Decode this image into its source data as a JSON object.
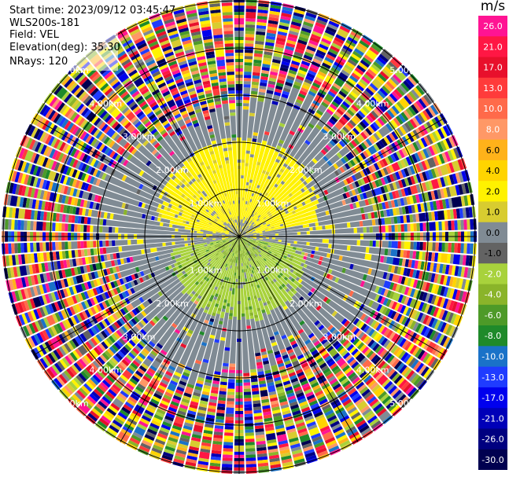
{
  "info": {
    "start_time": "Start time: 2023/09/12 03:45:47",
    "site": "WLS200s-181",
    "field": "Field: VEL",
    "elevation": "Elevation(deg): 35.30",
    "nrays": "NRays: 120"
  },
  "colorbar": {
    "unit": "m/s",
    "ticks": [
      "26.0",
      "21.0",
      "17.0",
      "13.0",
      "10.0",
      "8.0",
      "6.0",
      "4.0",
      "2.0",
      "1.0",
      "0.0",
      "-1.0",
      "-2.0",
      "-4.0",
      "-6.0",
      "-8.0",
      "-10.0",
      "-13.0",
      "-17.0",
      "-21.0",
      "-26.0",
      "-30.0"
    ],
    "colors": [
      "#ff1493",
      "#ff1744",
      "#e8102c",
      "#ff3b3b",
      "#ff6a4a",
      "#ff9866",
      "#ffb21a",
      "#ffd400",
      "#fff200",
      "#d8cc30",
      "#808b94",
      "#636363",
      "#a8d23c",
      "#8ab42a",
      "#4d9a28",
      "#1f8a2a",
      "#1a72c8",
      "#1f3cff",
      "#0000ee",
      "#0000b8",
      "#000080",
      "#000050"
    ]
  },
  "chart_data": {
    "type": "polar-ppi",
    "field": "VEL",
    "nrays": 120,
    "range_ring_labels": [
      "1.00km",
      "2.00km",
      "3.00km",
      "4.00km",
      "5.00km"
    ],
    "velocity_levels": [
      26.0,
      21.0,
      17.0,
      13.0,
      10.0,
      8.0,
      6.0,
      4.0,
      2.0,
      1.0,
      0.0,
      -1.0,
      -2.0,
      -4.0,
      -6.0,
      -8.0,
      -10.0,
      -13.0,
      -17.0,
      -21.0,
      -26.0,
      -30.0
    ],
    "pattern": {
      "near_field": "positive ~2 m/s (yellow) in north half, negative ~-2 m/s (green) in south half, ~0 m/s grey band east-west",
      "far_field": "noise across all velocity bins beyond about 3 km"
    }
  }
}
